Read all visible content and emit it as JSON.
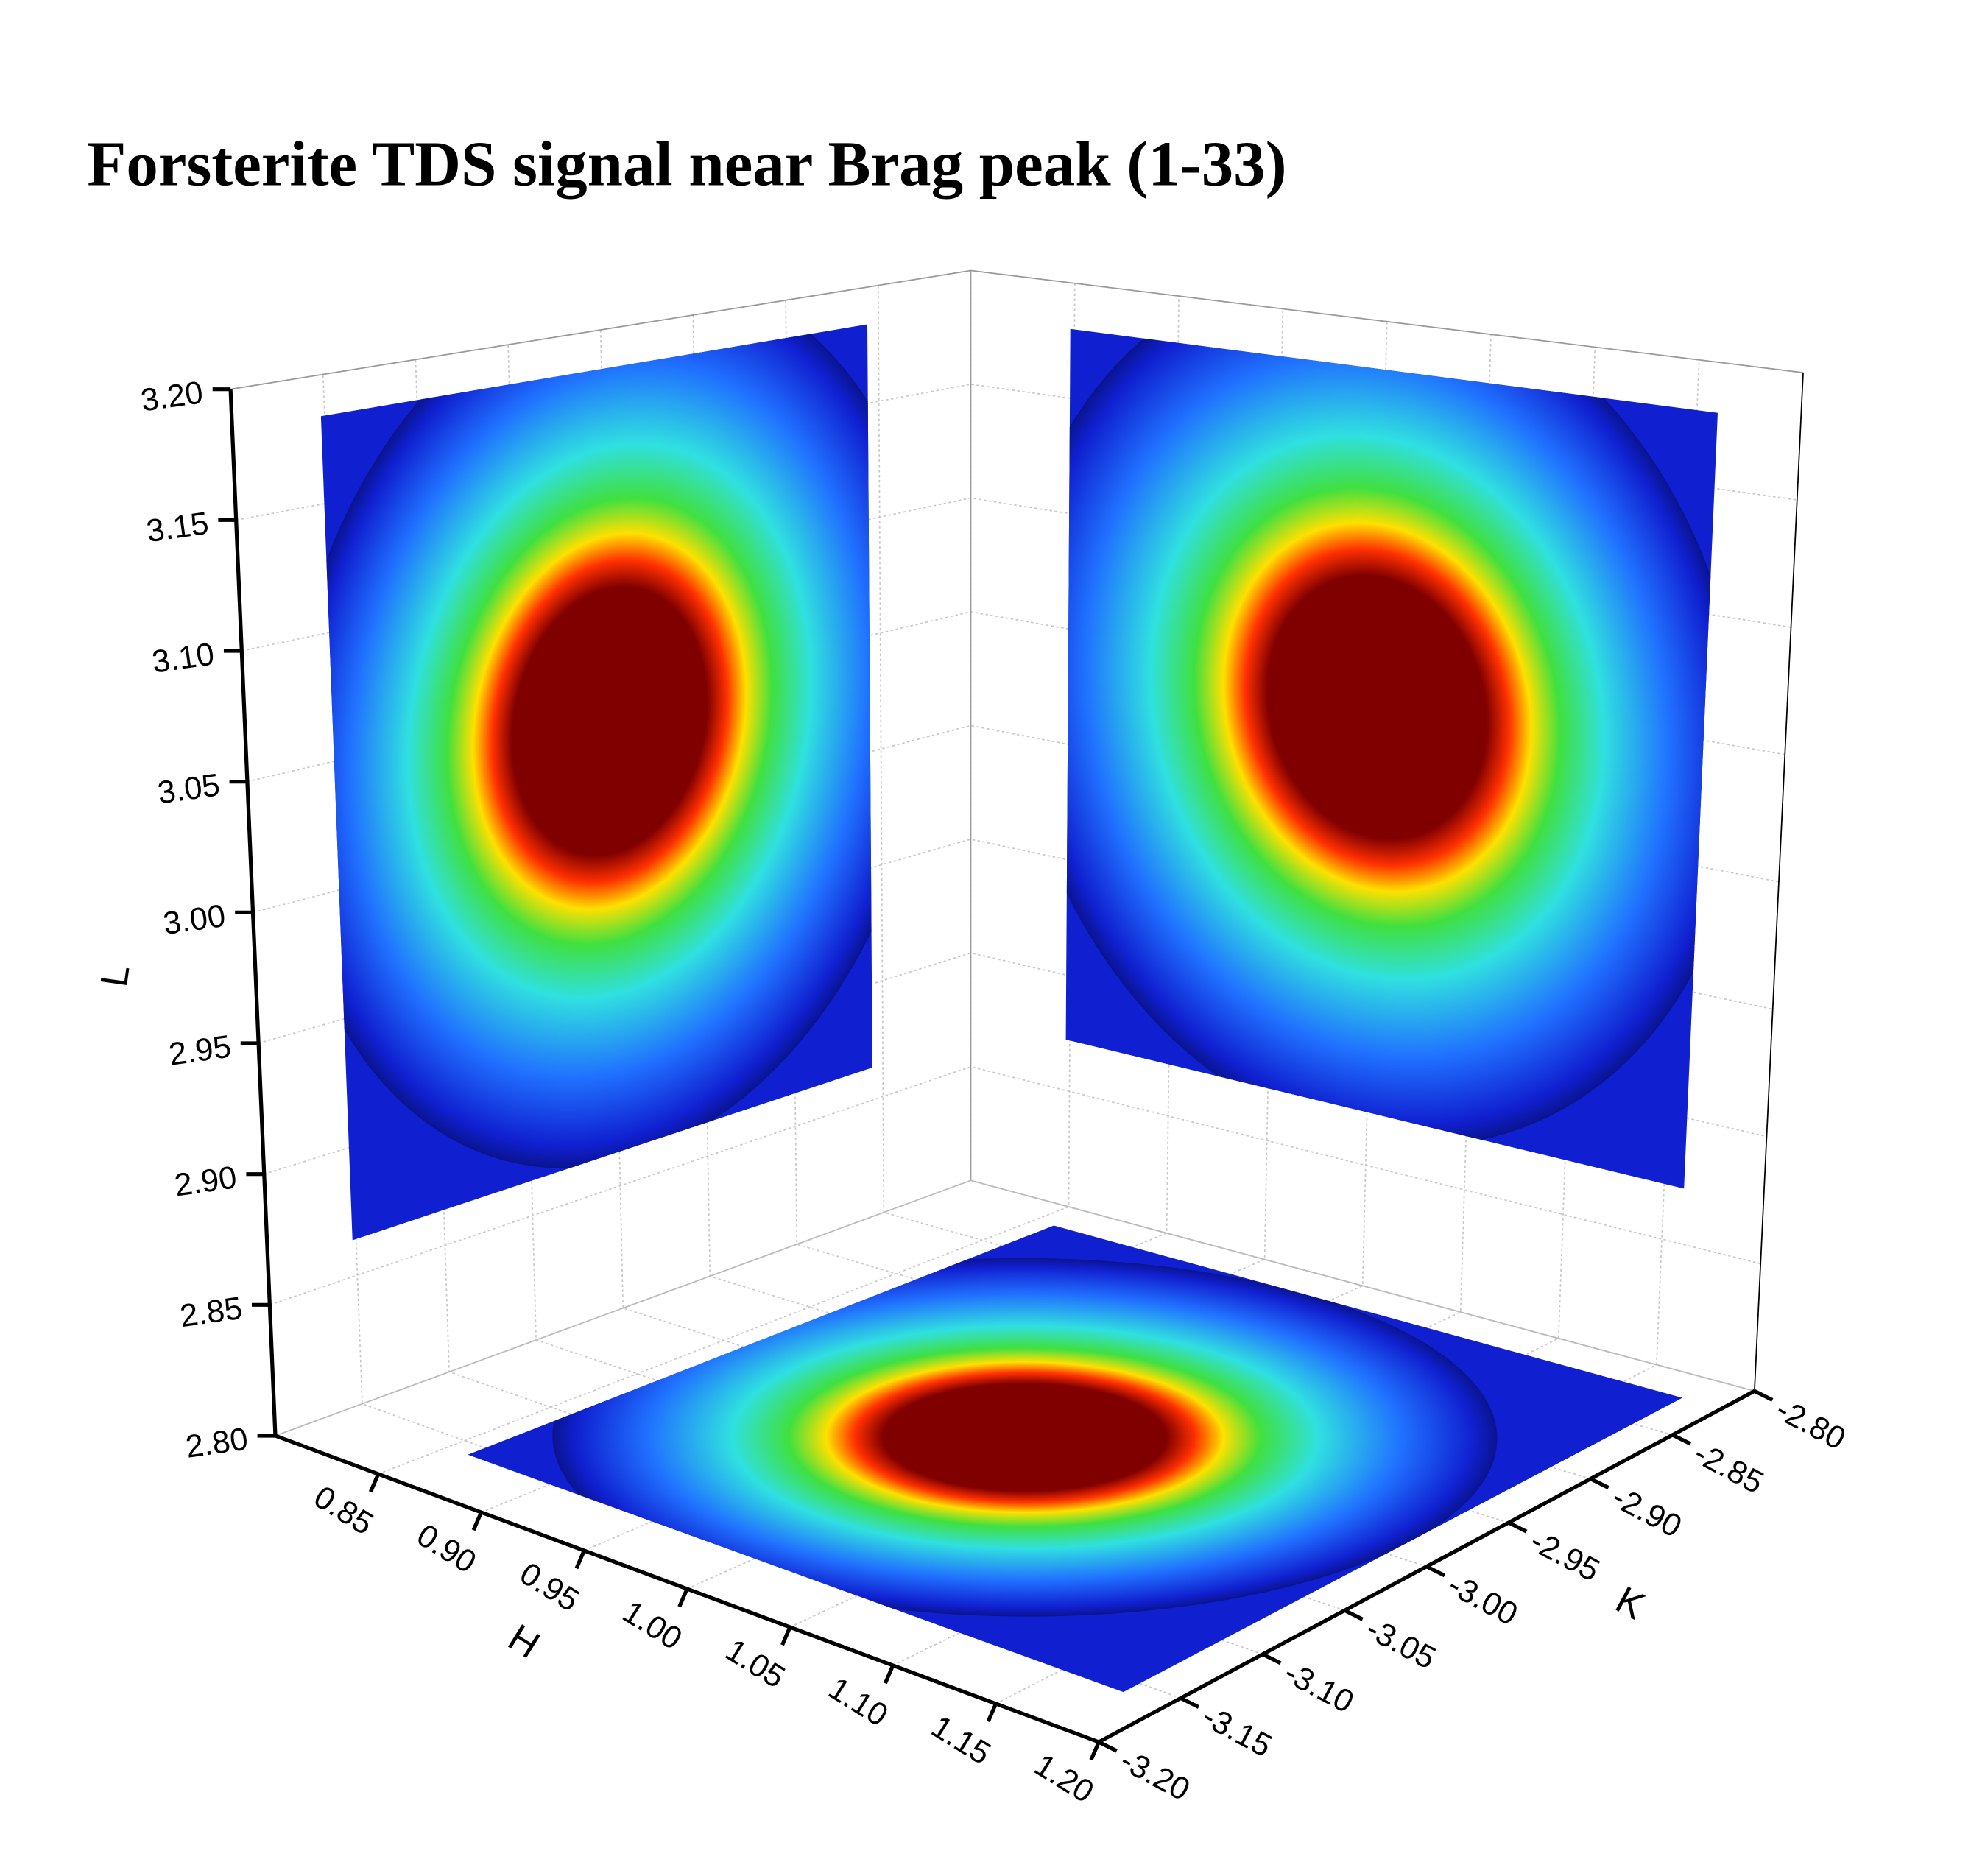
{
  "chart_data": {
    "type": "scatter3d",
    "title": "Forsterite TDS signal near Brag peak (1-33)",
    "xlabel": "H",
    "ylabel": "K",
    "zlabel": "L",
    "xlim": [
      0.8,
      1.2
    ],
    "xticks": [
      {
        "value": 0.85,
        "label": "0.85"
      },
      {
        "value": 0.9,
        "label": "0.90"
      },
      {
        "value": 0.95,
        "label": "0.95"
      },
      {
        "value": 1.0,
        "label": "1.00"
      },
      {
        "value": 1.05,
        "label": "1.05"
      },
      {
        "value": 1.1,
        "label": "1.10"
      },
      {
        "value": 1.15,
        "label": "1.15"
      },
      {
        "value": 1.2,
        "label": "1.20"
      }
    ],
    "ylim": [
      -3.2,
      -2.8
    ],
    "yticks": [
      {
        "value": -3.2,
        "label": "-3.20"
      },
      {
        "value": -3.15,
        "label": "-3.15"
      },
      {
        "value": -3.1,
        "label": "-3.10"
      },
      {
        "value": -3.05,
        "label": "-3.05"
      },
      {
        "value": -3.0,
        "label": "-3.00"
      },
      {
        "value": -2.95,
        "label": "-2.95"
      },
      {
        "value": -2.9,
        "label": "-2.90"
      },
      {
        "value": -2.85,
        "label": "-2.85"
      },
      {
        "value": -2.8,
        "label": "-2.80"
      }
    ],
    "zlim": [
      2.8,
      3.2
    ],
    "zticks": [
      {
        "value": 2.8,
        "label": "2.80"
      },
      {
        "value": 2.85,
        "label": "2.85"
      },
      {
        "value": 2.9,
        "label": "2.90"
      },
      {
        "value": 2.95,
        "label": "2.95"
      },
      {
        "value": 3.0,
        "label": "3.00"
      },
      {
        "value": 3.05,
        "label": "3.05"
      },
      {
        "value": 3.1,
        "label": "3.10"
      },
      {
        "value": 3.15,
        "label": "3.15"
      },
      {
        "value": 3.2,
        "label": "3.20"
      }
    ],
    "grid": true,
    "peak": {
      "h": 1.0,
      "k": -3.0,
      "l": 3.04
    },
    "colormap": [
      "#800000",
      "#ff3000",
      "#ffe000",
      "#40e040",
      "#30e0e0",
      "#2070ff",
      "#1020d0",
      "#0a1490"
    ]
  }
}
